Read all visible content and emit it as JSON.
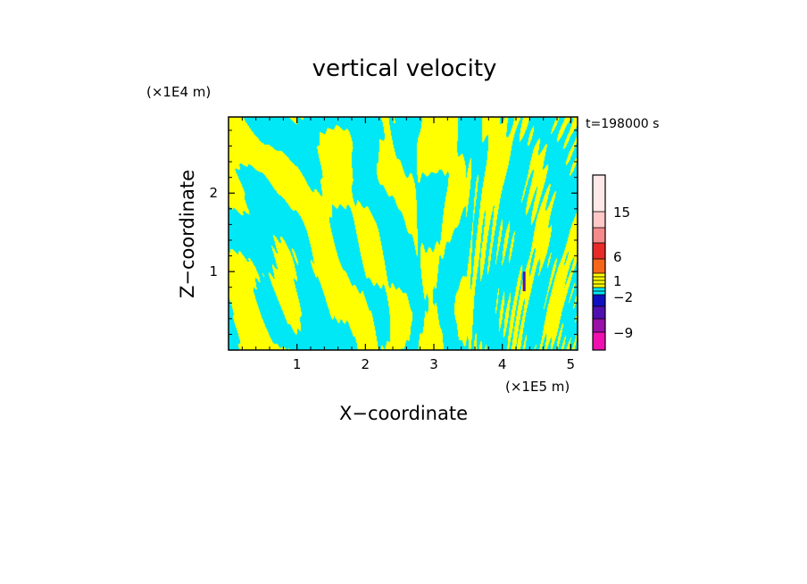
{
  "chart_data": {
    "type": "heatmap",
    "title": "vertical velocity",
    "xlabel": "X−coordinate",
    "ylabel": "Z−coordinate",
    "x_unit": "(×1E5 m)",
    "y_unit": "(×1E4 m)",
    "time_label": "t=198000 s",
    "xlim": [
      0,
      5.1
    ],
    "ylim": [
      0,
      2.97
    ],
    "x_ticks": [
      "1",
      "2",
      "3",
      "4",
      "5"
    ],
    "y_ticks": [
      "1",
      "2"
    ],
    "colorbar": {
      "labels": [
        "15",
        "6",
        "1",
        "−2",
        "−9"
      ],
      "colors": [
        "#ffe8e8",
        "#ffc8c8",
        "#f58a8a",
        "#e82a2a",
        "#f8661a",
        "#ffff00",
        "#00e8f5",
        "#1010c0",
        "#5010b0",
        "#9a10a8",
        "#d010a8",
        "#f010b0"
      ]
    },
    "field_colors": {
      "positive": "#ffff00",
      "negative": "#00e8f5",
      "strong_negative": "#5010b0"
    }
  }
}
